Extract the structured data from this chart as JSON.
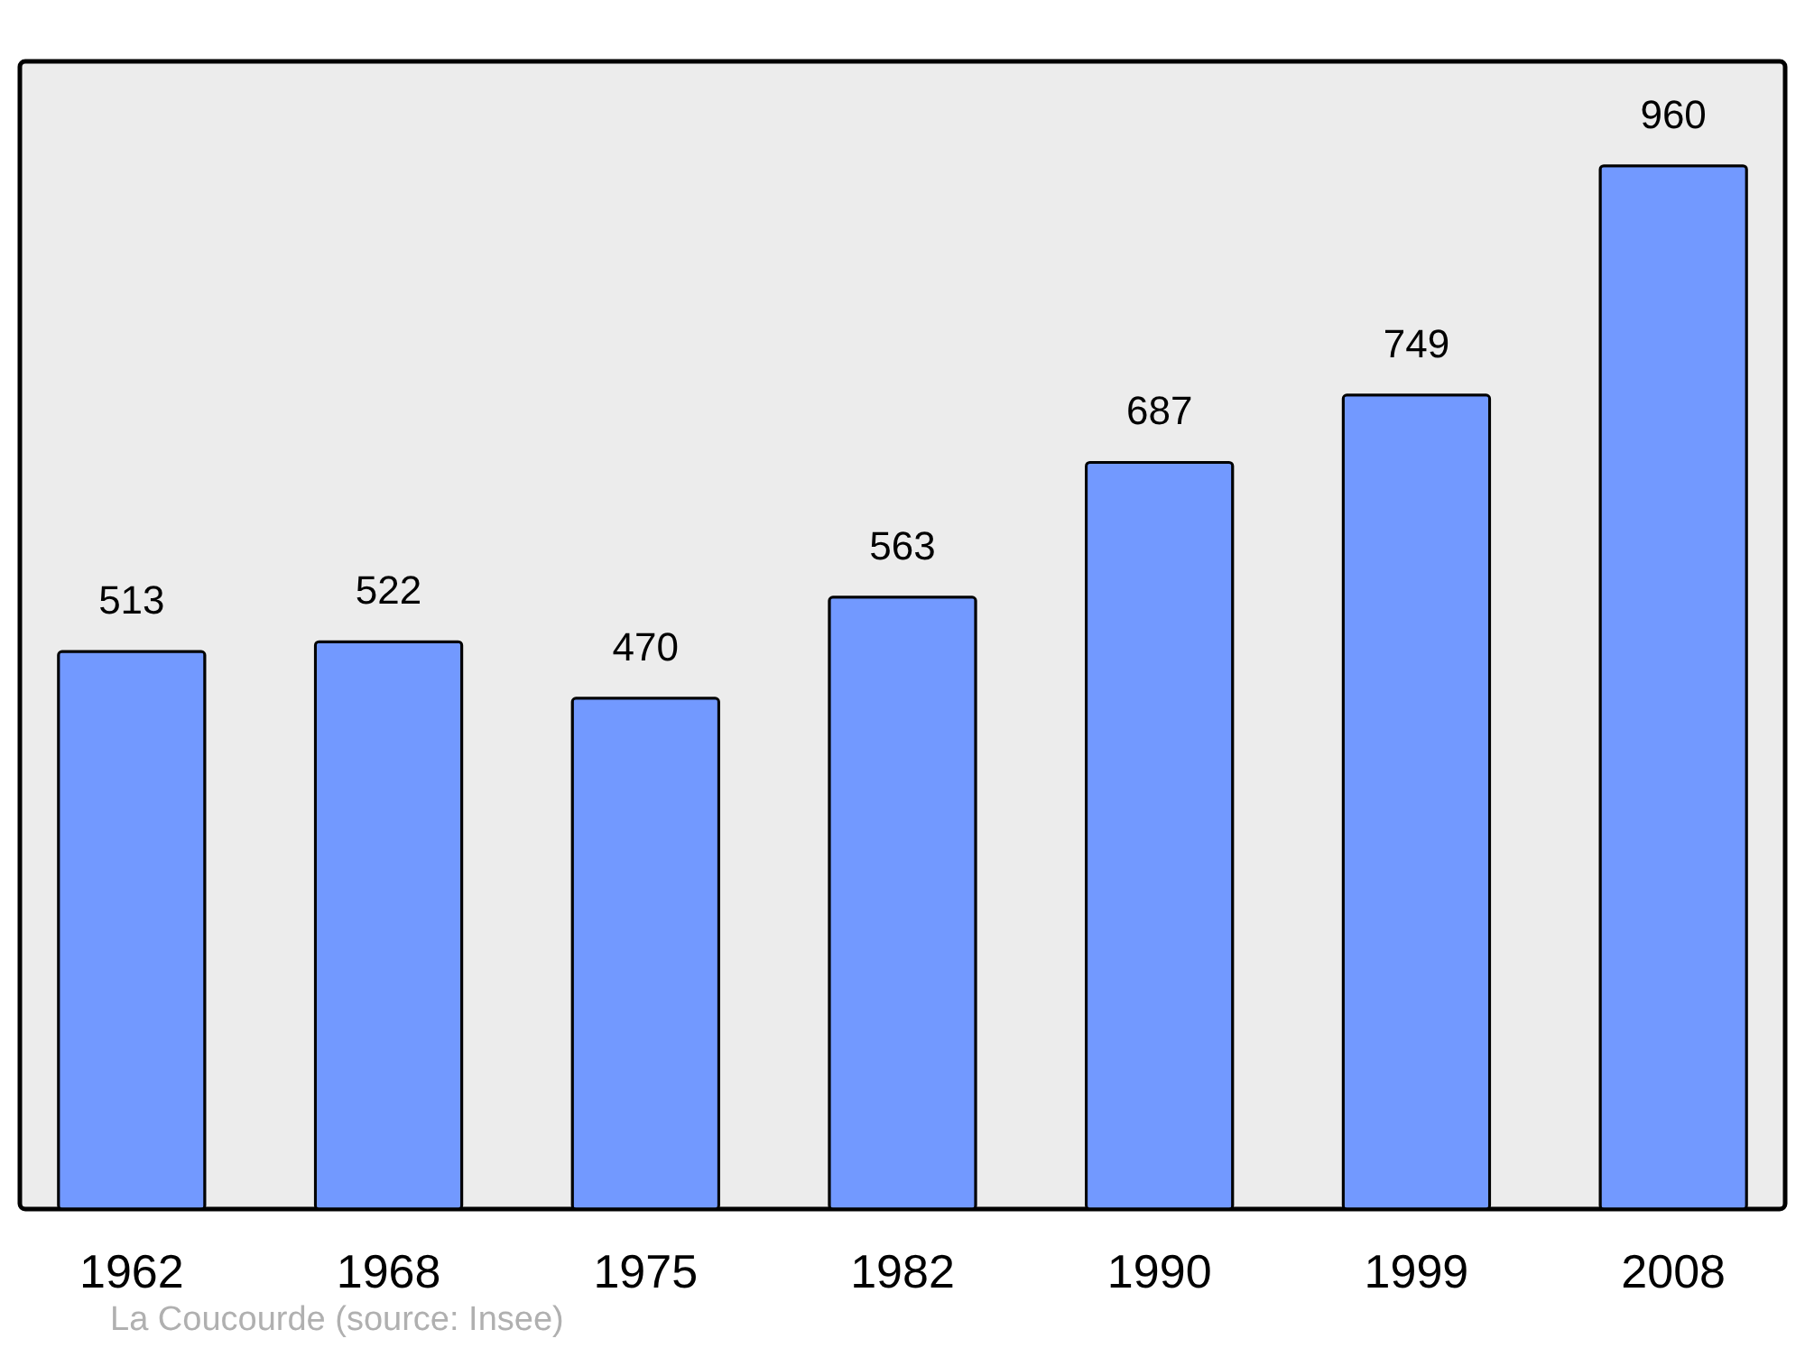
{
  "chart_data": {
    "type": "bar",
    "categories": [
      "1962",
      "1968",
      "1975",
      "1982",
      "1990",
      "1999",
      "2008"
    ],
    "values": [
      513,
      522,
      470,
      563,
      687,
      749,
      960
    ],
    "color": "#7299ff",
    "data_labels": true,
    "annotations": [
      "La Coucourde    (source: Insee)"
    ]
  }
}
